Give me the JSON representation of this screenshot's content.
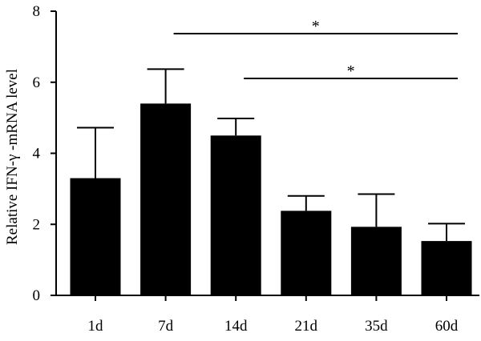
{
  "chart_data": {
    "type": "bar",
    "title": "",
    "xlabel": "",
    "ylabel": "Relative IFN-γ -mRNA level",
    "categories": [
      "1d",
      "7d",
      "14d",
      "21d",
      "35d",
      "60d"
    ],
    "values": [
      3.3,
      5.4,
      4.5,
      2.38,
      1.93,
      1.53
    ],
    "error_upper": [
      4.72,
      6.37,
      4.98,
      2.8,
      2.85,
      2.02
    ],
    "ylim": [
      0,
      8
    ],
    "yticks": [
      0,
      2,
      4,
      6,
      8
    ],
    "grid": false,
    "legend": "none",
    "bar_color": "#000000",
    "significance": [
      {
        "from": "7d",
        "to": "60d",
        "label": "*"
      },
      {
        "from": "14d",
        "to": "60d",
        "label": "*"
      }
    ]
  }
}
